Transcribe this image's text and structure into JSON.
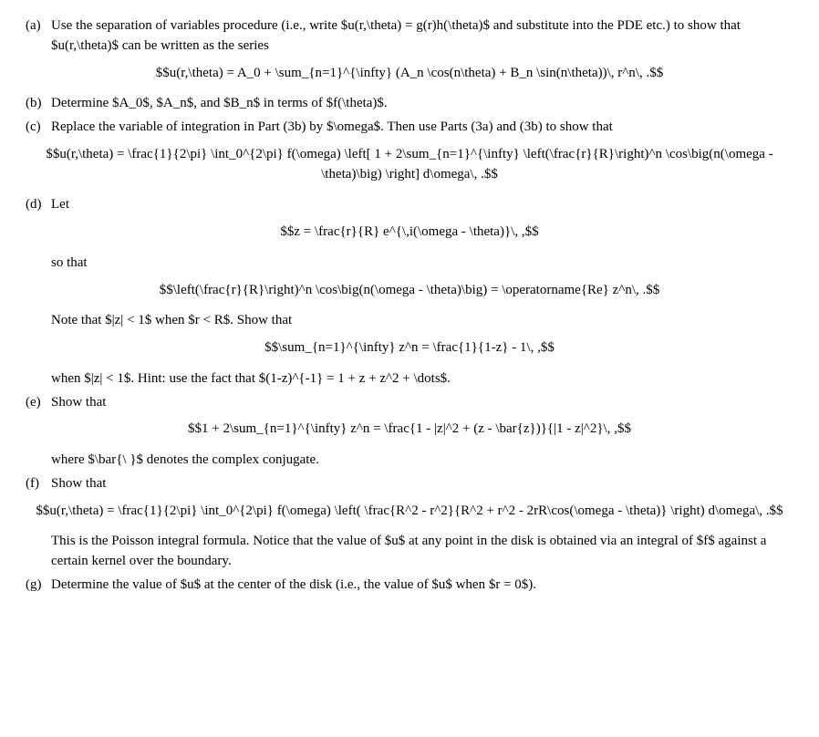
{
  "a": {
    "label": "(a)",
    "text1": "Use the separation of variables procedure (i.e., write $u(r,\\theta) = g(r)h(\\theta)$ and substitute into the PDE etc.) to show that $u(r,\\theta)$ can be written as the series",
    "eq": "$$u(r,\\theta) = A_0 + \\sum_{n=1}^{\\infty} (A_n \\cos(n\\theta) + B_n \\sin(n\\theta))\\, r^n\\, .$$"
  },
  "b": {
    "label": "(b)",
    "text": "Determine $A_0$, $A_n$, and $B_n$ in terms of $f(\\theta)$."
  },
  "c": {
    "label": "(c)",
    "text": "Replace the variable of integration in Part (3b) by $\\omega$. Then use Parts (3a) and (3b) to show that",
    "eq": "$$u(r,\\theta) = \\frac{1}{2\\pi} \\int_0^{2\\pi} f(\\omega) \\left[ 1 + 2\\sum_{n=1}^{\\infty} \\left(\\frac{r}{R}\\right)^n \\cos\\big(n(\\omega - \\theta)\\big) \\right] d\\omega\\, .$$"
  },
  "d": {
    "label": "(d)",
    "let": "Let",
    "eq1": "$$z = \\frac{r}{R} e^{\\,i(\\omega - \\theta)}\\, ,$$",
    "sothat": "so that",
    "eq2": "$$\\left(\\frac{r}{R}\\right)^n \\cos\\big(n(\\omega - \\theta)\\big) = \\operatorname{Re} z^n\\, .$$",
    "note": "Note that $|z| < 1$ when $r < R$. Show that",
    "eq3": "$$\\sum_{n=1}^{\\infty} z^n = \\frac{1}{1-z} - 1\\, ,$$",
    "hint": "when $|z| < 1$. Hint: use the fact that $(1-z)^{-1} = 1 + z + z^2 + \\dots$."
  },
  "e": {
    "label": "(e)",
    "text": "Show that",
    "eq": "$$1 + 2\\sum_{n=1}^{\\infty} z^n = \\frac{1 - |z|^2 + (z - \\bar{z})}{|1 - z|^2}\\, ,$$",
    "note": "where $\\bar{\\ }$ denotes the complex conjugate."
  },
  "f": {
    "label": "(f)",
    "text": "Show that",
    "eq": "$$u(r,\\theta) = \\frac{1}{2\\pi} \\int_0^{2\\pi} f(\\omega) \\left( \\frac{R^2 - r^2}{R^2 + r^2 - 2rR\\cos(\\omega - \\theta)} \\right) d\\omega\\, .$$",
    "note": "This is the Poisson integral formula. Notice that the value of $u$ at any point in the disk is obtained via an integral of $f$ against a certain kernel over the boundary."
  },
  "g": {
    "label": "(g)",
    "text": "Determine the value of $u$ at the center of the disk (i.e., the value of $u$ when $r = 0$)."
  }
}
